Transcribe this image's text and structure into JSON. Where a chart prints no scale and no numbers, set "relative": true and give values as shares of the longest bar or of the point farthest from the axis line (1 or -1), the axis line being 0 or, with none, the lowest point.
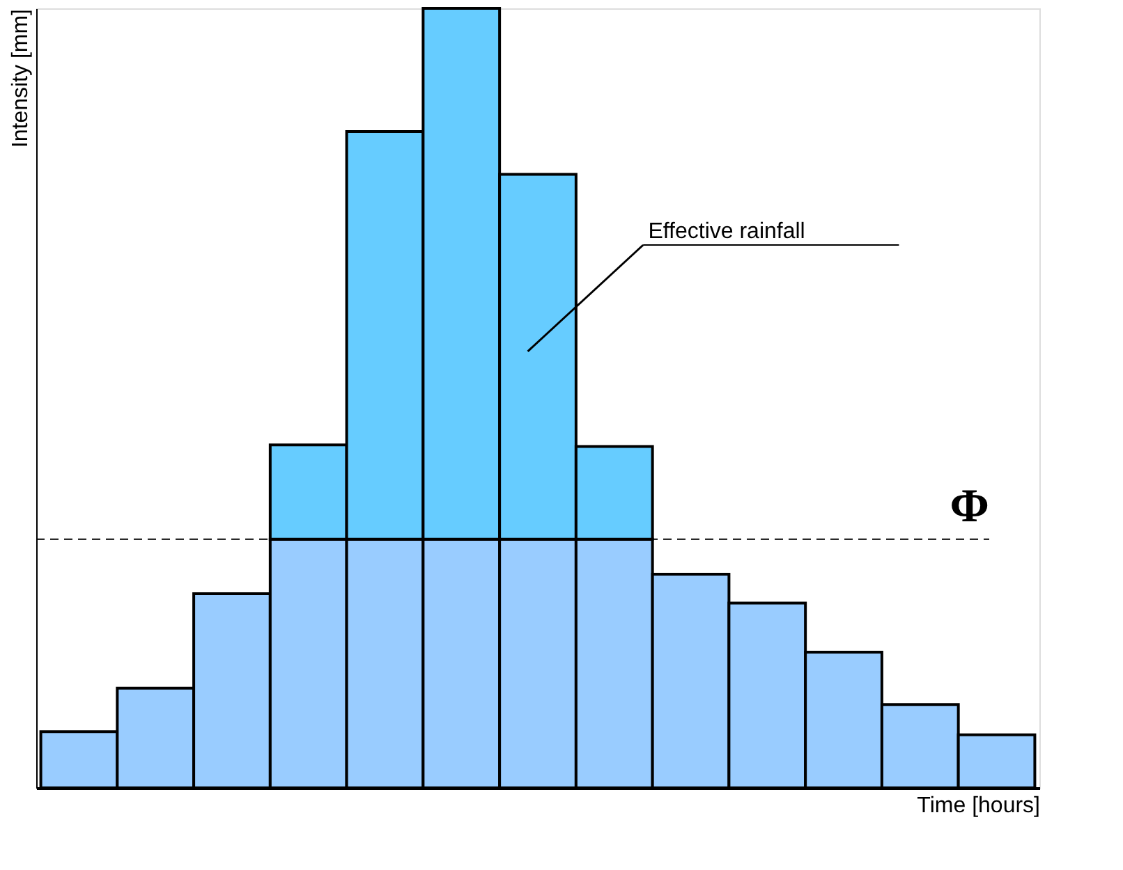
{
  "chart_data": {
    "type": "bar",
    "stacked": true,
    "relative": true,
    "xlabel": "Time [hours]",
    "ylabel": "Intensity [mm]",
    "categories": [
      null,
      null,
      null,
      null,
      null,
      null,
      null,
      null,
      null,
      null,
      null,
      null,
      null
    ],
    "series": [
      {
        "color": "#99ccff",
        "values": [
          0.072,
          0.128,
          0.249,
          0.319,
          0.319,
          0.319,
          0.319,
          0.319,
          0.274,
          0.237,
          0.174,
          0.107,
          0.068
        ]
      },
      {
        "color": "#66ccff",
        "values": [
          null,
          null,
          null,
          0.121,
          0.523,
          0.681,
          0.468,
          0.119,
          null,
          null,
          null,
          null,
          null
        ]
      }
    ],
    "ref_lines": [
      {
        "axis": "y",
        "value": 0.319,
        "label": "Φ",
        "line_style": "dashed"
      }
    ],
    "annotations": [
      "Effective rainfall"
    ],
    "grid": false,
    "legend": false,
    "tick_labels": false
  }
}
